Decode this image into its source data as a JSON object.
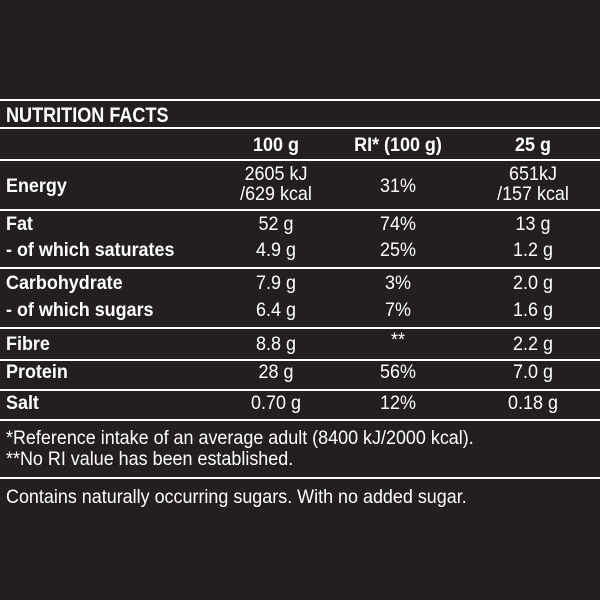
{
  "title": "NUTRITION FACTS",
  "columns": {
    "per100": "100 g",
    "ri": "RI* (100 g)",
    "per25": "25 g"
  },
  "rows": [
    {
      "label": "Energy",
      "per100_line1": "2605 kJ",
      "per100_line2": "/629 kcal",
      "ri": "31%",
      "per25_line1": "651kJ",
      "per25_line2": "/157 kcal"
    },
    {
      "label": "Fat",
      "per100": "52 g",
      "ri": "74%",
      "per25": "13 g"
    },
    {
      "label": "- of which saturates",
      "per100": "4.9 g",
      "ri": "25%",
      "per25": "1.2 g"
    },
    {
      "label": "Carbohydrate",
      "per100": "7.9 g",
      "ri": "3%",
      "per25": "2.0 g"
    },
    {
      "label": "- of which sugars",
      "per100": "6.4 g",
      "ri": "7%",
      "per25": "1.6 g"
    },
    {
      "label": "Fibre",
      "per100": "8.8 g",
      "ri": "**",
      "per25": "2.2 g"
    },
    {
      "label": "Protein",
      "per100": "28 g",
      "ri": "56%",
      "per25": "7.0 g"
    },
    {
      "label": "Salt",
      "per100": "0.70 g",
      "ri": "12%",
      "per25": "0.18 g"
    }
  ],
  "footnotes": {
    "ri_note": "*Reference intake of an average adult (8400 kJ/2000 kcal).",
    "no_ri_note": "**No RI value has been established."
  },
  "statement": "Contains naturally occurring sugars. With no added sugar."
}
